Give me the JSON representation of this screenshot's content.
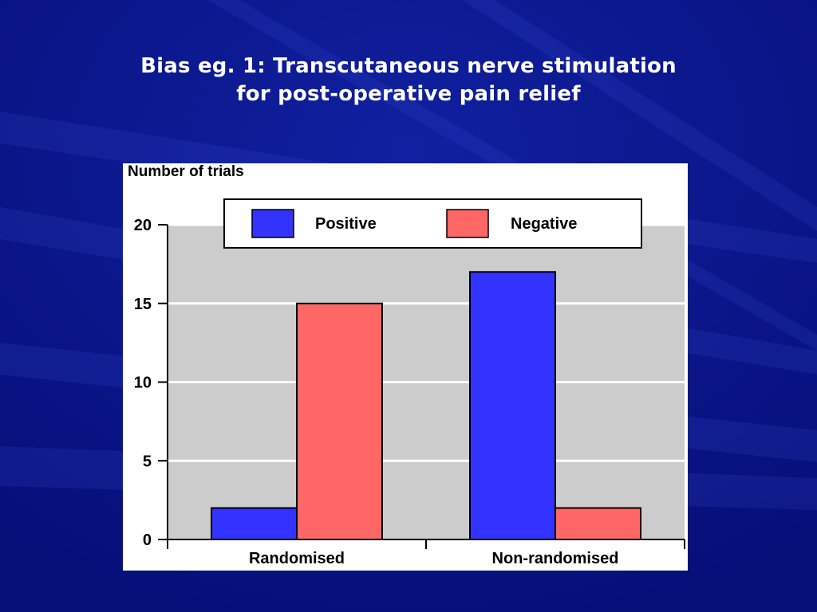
{
  "slide": {
    "title_line1": "Bias eg. 1: Transcutaneous nerve stimulation",
    "title_line2": "for post-operative pain relief"
  },
  "colors": {
    "background": "#0a148c",
    "plot_area": "#cccccc",
    "positive": "#3333ff",
    "negative": "#ff6666"
  },
  "chart_data": {
    "type": "bar",
    "title": "",
    "ylabel": "Number of trials",
    "xlabel": "",
    "categories": [
      "Randomised",
      "Non-randomised"
    ],
    "series": [
      {
        "name": "Positive",
        "values": [
          2,
          17
        ]
      },
      {
        "name": "Negative",
        "values": [
          15,
          2
        ]
      }
    ],
    "ylim": [
      0,
      20
    ],
    "yticks": [
      0,
      5,
      10,
      15,
      20
    ],
    "ytick_labels": [
      "0",
      "5",
      "10",
      "15",
      "20"
    ],
    "grid": true,
    "legend_position": "top-center"
  }
}
